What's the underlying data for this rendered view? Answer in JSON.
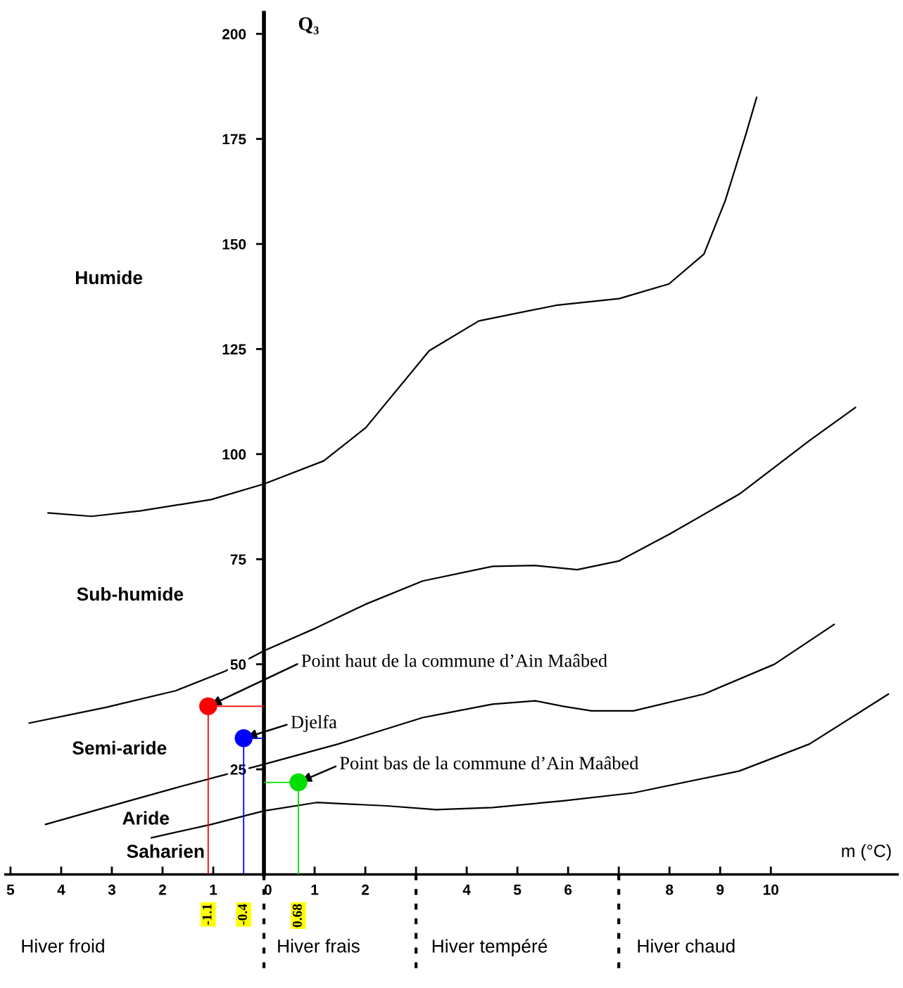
{
  "chart_data": {
    "type": "line",
    "xlabel": "m (°C)",
    "ylabel": "Q₃",
    "xlim": [
      -5.1,
      12.5
    ],
    "ylim": [
      0,
      205
    ],
    "xticks": [
      {
        "value": -5,
        "label": "5"
      },
      {
        "value": -4,
        "label": "4"
      },
      {
        "value": -3,
        "label": "3"
      },
      {
        "value": -2,
        "label": "2"
      },
      {
        "value": -1,
        "label": "1"
      },
      0,
      1,
      2,
      {
        "value": 3,
        "label": null
      },
      4,
      5,
      6,
      {
        "value": 7,
        "label": null
      },
      8,
      9,
      10
    ],
    "x2lim": [
      -5.1,
      12.5
    ],
    "x2ticks": [
      -1.1,
      -0.4,
      0.68
    ],
    "yticks": [
      25,
      50,
      75,
      100,
      125,
      150,
      175,
      200
    ],
    "grid": false,
    "series": [
      {
        "color": "#000000",
        "x": [
          -4.26,
          -3.4,
          -2.43,
          -1.04,
          0,
          1.18,
          2.01,
          3.26,
          4.24,
          5.76,
          7.01,
          7.99,
          8.68,
          9.1,
          9.51,
          9.72
        ],
        "values": [
          86.0,
          85.2,
          86.5,
          89.2,
          92.9,
          98.4,
          106.3,
          124.6,
          131.7,
          135.4,
          137.0,
          140.5,
          147.6,
          160.3,
          176.2,
          184.9
        ]
      },
      {
        "color": "#000000",
        "x": [
          -4.63,
          -3.13,
          -1.74,
          -0.76,
          0,
          1.04,
          2.01,
          3.13,
          4.51,
          5.35,
          6.18,
          7.01,
          7.99,
          9.38,
          10.76,
          11.67
        ],
        "values": [
          36.0,
          39.7,
          43.7,
          48.4,
          53.2,
          58.7,
          64.3,
          69.8,
          73.3,
          73.5,
          72.5,
          74.6,
          80.9,
          90.5,
          103.2,
          111.1
        ]
      },
      {
        "color": "#000000",
        "x": [
          -4.31,
          -3.13,
          -1.74,
          0,
          1.46,
          3.13,
          4.51,
          5.35,
          5.9,
          6.46,
          7.29,
          8.68,
          10.07,
          11.25
        ],
        "values": [
          11.9,
          15.9,
          20.6,
          26.2,
          31.0,
          37.3,
          40.5,
          41.3,
          40.0,
          38.9,
          38.9,
          42.9,
          50.0,
          59.5
        ]
      },
      {
        "color": "#000000",
        "x": [
          -2.22,
          -1.04,
          0,
          1.04,
          2.43,
          3.4,
          4.51,
          5.9,
          7.29,
          9.38,
          10.76,
          12.32
        ],
        "values": [
          8.7,
          11.9,
          15.1,
          17.1,
          16.3,
          15.4,
          15.9,
          17.5,
          19.4,
          24.6,
          31.0,
          42.9
        ]
      },
      {
        "type": "scatter",
        "color": "#ff0000",
        "x": [
          -1.1
        ],
        "values": [
          40
        ],
        "errors": [
          [
            0,
            40
          ]
        ],
        "xerrors": [
          [
            -1.1,
            0
          ]
        ]
      },
      {
        "type": "scatter",
        "color": "#0000ff",
        "x": [
          -0.4
        ],
        "values": [
          32.4
        ],
        "errors": [
          [
            0,
            32.4
          ]
        ],
        "xerrors": [
          [
            -0.4,
            0
          ]
        ]
      },
      {
        "type": "scatter",
        "color": "#00dd00",
        "x": [
          0.68
        ],
        "values": [
          21.9
        ],
        "errors": [
          [
            0,
            21.9
          ]
        ],
        "xerrors": [
          [
            0,
            0.68
          ]
        ]
      }
    ],
    "annotations": [
      "Humide",
      "Sub-humide",
      "Semi-aride",
      "Aride",
      "Saharien",
      {
        "text": "Point haut de la commune d’Ain Maâbed",
        "x": -1.1,
        "y": 40
      },
      {
        "text": "Djelfa",
        "x": -0.4,
        "y": 32.4
      },
      {
        "text": "Point bas de la commune d’Ain Maâbed",
        "x": 0.68,
        "y": 21.9
      },
      "Hiver froid",
      "Hiver frais",
      "Hiver tempéré",
      "Hiver chaud"
    ]
  }
}
